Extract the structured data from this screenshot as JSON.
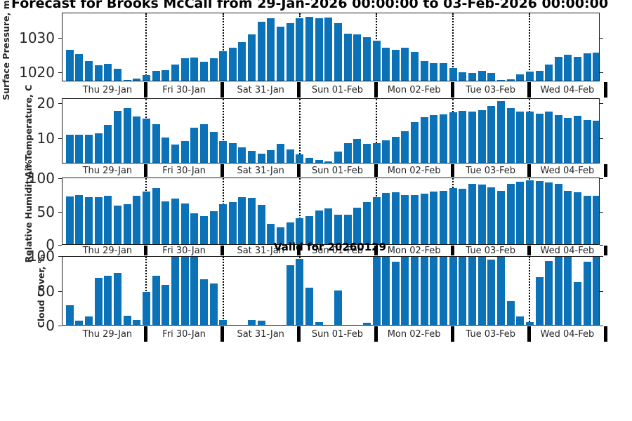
{
  "title": "Forecast for Brooks McCall from 29-Jan-2026 00:00:00 to 03-Feb-2026 00:00:00",
  "annotation": "Valid for 20260129",
  "bar_color": "#0b72b8",
  "chart_data": {
    "type": "bar",
    "x_note": "3-hourly values, 8 bars per day, 56 bars per panel; dotted vertical lines mark day boundaries",
    "days": [
      "Thu 29-Jan",
      "Fri 30-Jan",
      "Sat 31-Jan",
      "Sun 01-Feb",
      "Mon 02-Feb",
      "Tue 03-Feb",
      "Wed 04-Feb"
    ],
    "legend": "none",
    "grid": "off",
    "series": [
      {
        "id": "pressure",
        "ylabel": "Surface Pressure, mb",
        "yticks": [
          1020,
          1030
        ],
        "ylim": [
          1017.3,
          1037.3
        ],
        "values": [
          1026.4,
          1025.3,
          1023.1,
          1021.9,
          1022.3,
          1020.9,
          1017.6,
          1017.9,
          1018.9,
          1020.3,
          1020.4,
          1022.1,
          1024.0,
          1024.1,
          1022.9,
          1024.0,
          1026.1,
          1027.2,
          1028.7,
          1031.0,
          1034.8,
          1035.8,
          1033.3,
          1034.4,
          1035.9,
          1036.2,
          1035.8,
          1036.0,
          1034.3,
          1031.2,
          1031.0,
          1030.3,
          1029.1,
          1027.1,
          1026.5,
          1027.1,
          1025.9,
          1023.1,
          1022.5,
          1022.6,
          1021.0,
          1019.8,
          1019.6,
          1020.2,
          1019.5,
          1017.5,
          1017.8,
          1019.2,
          1020.1,
          1020.2,
          1022.1,
          1024.3,
          1025.1,
          1024.4,
          1025.4,
          1025.6
        ]
      },
      {
        "id": "temperature",
        "ylabel": "Air Temperature, C",
        "yticks": [
          10,
          20
        ],
        "ylim": [
          2.84,
          21.33
        ],
        "values": [
          11.0,
          11.0,
          11.0,
          11.4,
          13.9,
          17.8,
          18.7,
          16.2,
          15.7,
          14.0,
          10.2,
          8.1,
          9.2,
          13.0,
          14.0,
          11.8,
          9.1,
          8.6,
          7.3,
          6.3,
          5.4,
          6.6,
          8.3,
          6.7,
          5.3,
          4.2,
          3.6,
          3.2,
          6.1,
          8.6,
          9.7,
          8.3,
          8.5,
          9.4,
          10.4,
          12.0,
          14.6,
          16.1,
          16.6,
          16.8,
          17.4,
          17.9,
          17.7,
          18.0,
          19.3,
          20.7,
          18.8,
          17.6,
          17.6,
          17.1,
          17.6,
          16.7,
          15.9,
          16.4,
          15.2,
          15.1
        ]
      },
      {
        "id": "humidity",
        "ylabel": "Relative Humidity, %",
        "yticks": [
          0,
          50,
          100
        ],
        "ylim": [
          0,
          101
        ],
        "values": [
          73,
          75,
          72,
          72,
          74,
          59,
          61,
          74,
          81,
          86,
          66,
          70,
          62,
          47,
          43,
          51,
          61,
          65,
          72,
          71,
          60,
          31,
          26,
          33,
          40,
          43,
          52,
          55,
          45,
          45,
          56,
          65,
          72,
          79,
          80,
          75,
          75,
          77,
          81,
          82,
          86,
          85,
          92,
          91,
          87,
          82,
          92,
          96,
          98,
          97,
          95,
          92,
          82,
          80,
          74,
          74
        ]
      },
      {
        "id": "cloud",
        "ylabel": "Cloud Cover, %",
        "yticks": [
          0,
          50,
          100
        ],
        "ylim": [
          0,
          100
        ],
        "values": [
          29,
          6,
          12,
          69,
          72,
          76,
          13,
          7,
          49,
          72,
          59,
          100,
          100,
          100,
          67,
          61,
          7,
          0,
          0,
          7,
          6,
          0,
          0,
          88,
          97,
          55,
          4,
          0,
          51,
          0,
          0,
          3,
          100,
          100,
          93,
          100,
          100,
          100,
          100,
          100,
          100,
          100,
          100,
          100,
          96,
          100,
          35,
          12,
          4,
          70,
          94,
          100,
          100,
          63,
          93,
          100
        ]
      }
    ]
  }
}
